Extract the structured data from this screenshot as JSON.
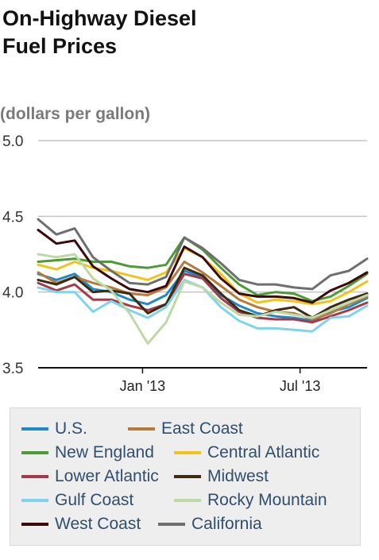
{
  "title_lines": [
    "On-Highway Diesel",
    "Fuel Prices"
  ],
  "units": "(dollars per gallon)",
  "chart_data": {
    "type": "line",
    "title": "On-Highway Diesel Fuel Prices",
    "ylabel": "(dollars per gallon)",
    "xlabel": "",
    "ylim": [
      3.5,
      5.0
    ],
    "yticks": [
      3.5,
      4.0,
      4.5,
      5.0
    ],
    "ytick_labels": [
      "3.5",
      "4.0",
      "4.5",
      "5.0"
    ],
    "xlim": [
      "2012-09-03",
      "2013-09-16"
    ],
    "xticks": [
      "2013-01-01",
      "2013-07-01"
    ],
    "xtick_labels": [
      "Jan '13",
      "Jul '13"
    ],
    "grid": "horizontal",
    "legend_position": "bottom",
    "x": [
      "2012-09-03",
      "2012-09-24",
      "2012-10-15",
      "2012-11-05",
      "2012-11-26",
      "2012-12-17",
      "2013-01-07",
      "2013-01-28",
      "2013-02-18",
      "2013-03-11",
      "2013-04-01",
      "2013-04-22",
      "2013-05-13",
      "2013-06-03",
      "2013-06-24",
      "2013-07-15",
      "2013-08-05",
      "2013-08-26",
      "2013-09-16"
    ],
    "series": [
      {
        "name": "U.S.",
        "color": "#1f8ac8",
        "values": [
          4.12,
          4.08,
          4.12,
          4.02,
          4.0,
          3.95,
          3.92,
          3.98,
          4.14,
          4.1,
          3.98,
          3.91,
          3.86,
          3.84,
          3.83,
          3.81,
          3.87,
          3.9,
          3.96
        ]
      },
      {
        "name": "East Coast",
        "color": "#b8793c",
        "values": [
          4.13,
          4.06,
          4.1,
          4.06,
          4.03,
          3.99,
          3.98,
          4.03,
          4.2,
          4.13,
          4.04,
          3.95,
          3.9,
          3.87,
          3.86,
          3.82,
          3.86,
          3.92,
          3.97
        ]
      },
      {
        "name": "New England",
        "color": "#4c9b34",
        "values": [
          4.2,
          4.21,
          4.22,
          4.2,
          4.2,
          4.17,
          4.16,
          4.18,
          4.36,
          4.28,
          4.16,
          4.05,
          3.98,
          4.0,
          3.99,
          3.94,
          3.97,
          4.04,
          4.12
        ]
      },
      {
        "name": "Central Atlantic",
        "color": "#f2c318",
        "values": [
          4.18,
          4.15,
          4.2,
          4.16,
          4.14,
          4.11,
          4.08,
          4.13,
          4.29,
          4.23,
          4.12,
          3.99,
          3.93,
          3.95,
          3.94,
          3.92,
          3.94,
          4.0,
          4.07
        ]
      },
      {
        "name": "Lower Atlantic",
        "color": "#a43a4a",
        "values": [
          4.06,
          4.01,
          4.05,
          3.95,
          3.95,
          3.91,
          3.88,
          3.92,
          4.12,
          4.09,
          3.96,
          3.87,
          3.83,
          3.82,
          3.82,
          3.8,
          3.84,
          3.88,
          3.93
        ]
      },
      {
        "name": "Midwest",
        "color": "#3c2a12",
        "values": [
          4.08,
          4.05,
          4.1,
          4.0,
          4.01,
          3.99,
          3.86,
          3.92,
          4.16,
          4.11,
          3.99,
          3.88,
          3.84,
          3.88,
          3.9,
          3.83,
          3.9,
          3.95,
          3.99
        ]
      },
      {
        "name": "Gulf Coast",
        "color": "#7ed4ec",
        "values": [
          4.03,
          4.0,
          4.0,
          3.87,
          3.94,
          3.88,
          3.83,
          3.9,
          4.08,
          4.03,
          3.9,
          3.81,
          3.76,
          3.76,
          3.75,
          3.74,
          3.83,
          3.84,
          3.91
        ]
      },
      {
        "name": "Rocky Mountain",
        "color": "#bcd9a6",
        "values": [
          4.25,
          4.23,
          4.25,
          4.09,
          4.01,
          3.86,
          3.66,
          3.8,
          4.07,
          4.03,
          3.93,
          3.85,
          3.84,
          3.87,
          3.85,
          3.83,
          3.88,
          3.93,
          3.98
        ]
      },
      {
        "name": "West Coast",
        "color": "#3c0a0a",
        "values": [
          4.41,
          4.32,
          4.34,
          4.17,
          4.09,
          4.02,
          4.0,
          4.04,
          4.3,
          4.23,
          4.09,
          3.99,
          3.97,
          3.97,
          3.96,
          3.93,
          4.01,
          4.06,
          4.13
        ]
      },
      {
        "name": "California",
        "color": "#6e6e6e",
        "values": [
          4.48,
          4.38,
          4.42,
          4.23,
          4.14,
          4.06,
          4.05,
          4.1,
          4.36,
          4.29,
          4.19,
          4.08,
          4.05,
          4.05,
          4.03,
          4.02,
          4.11,
          4.14,
          4.22
        ]
      }
    ]
  }
}
